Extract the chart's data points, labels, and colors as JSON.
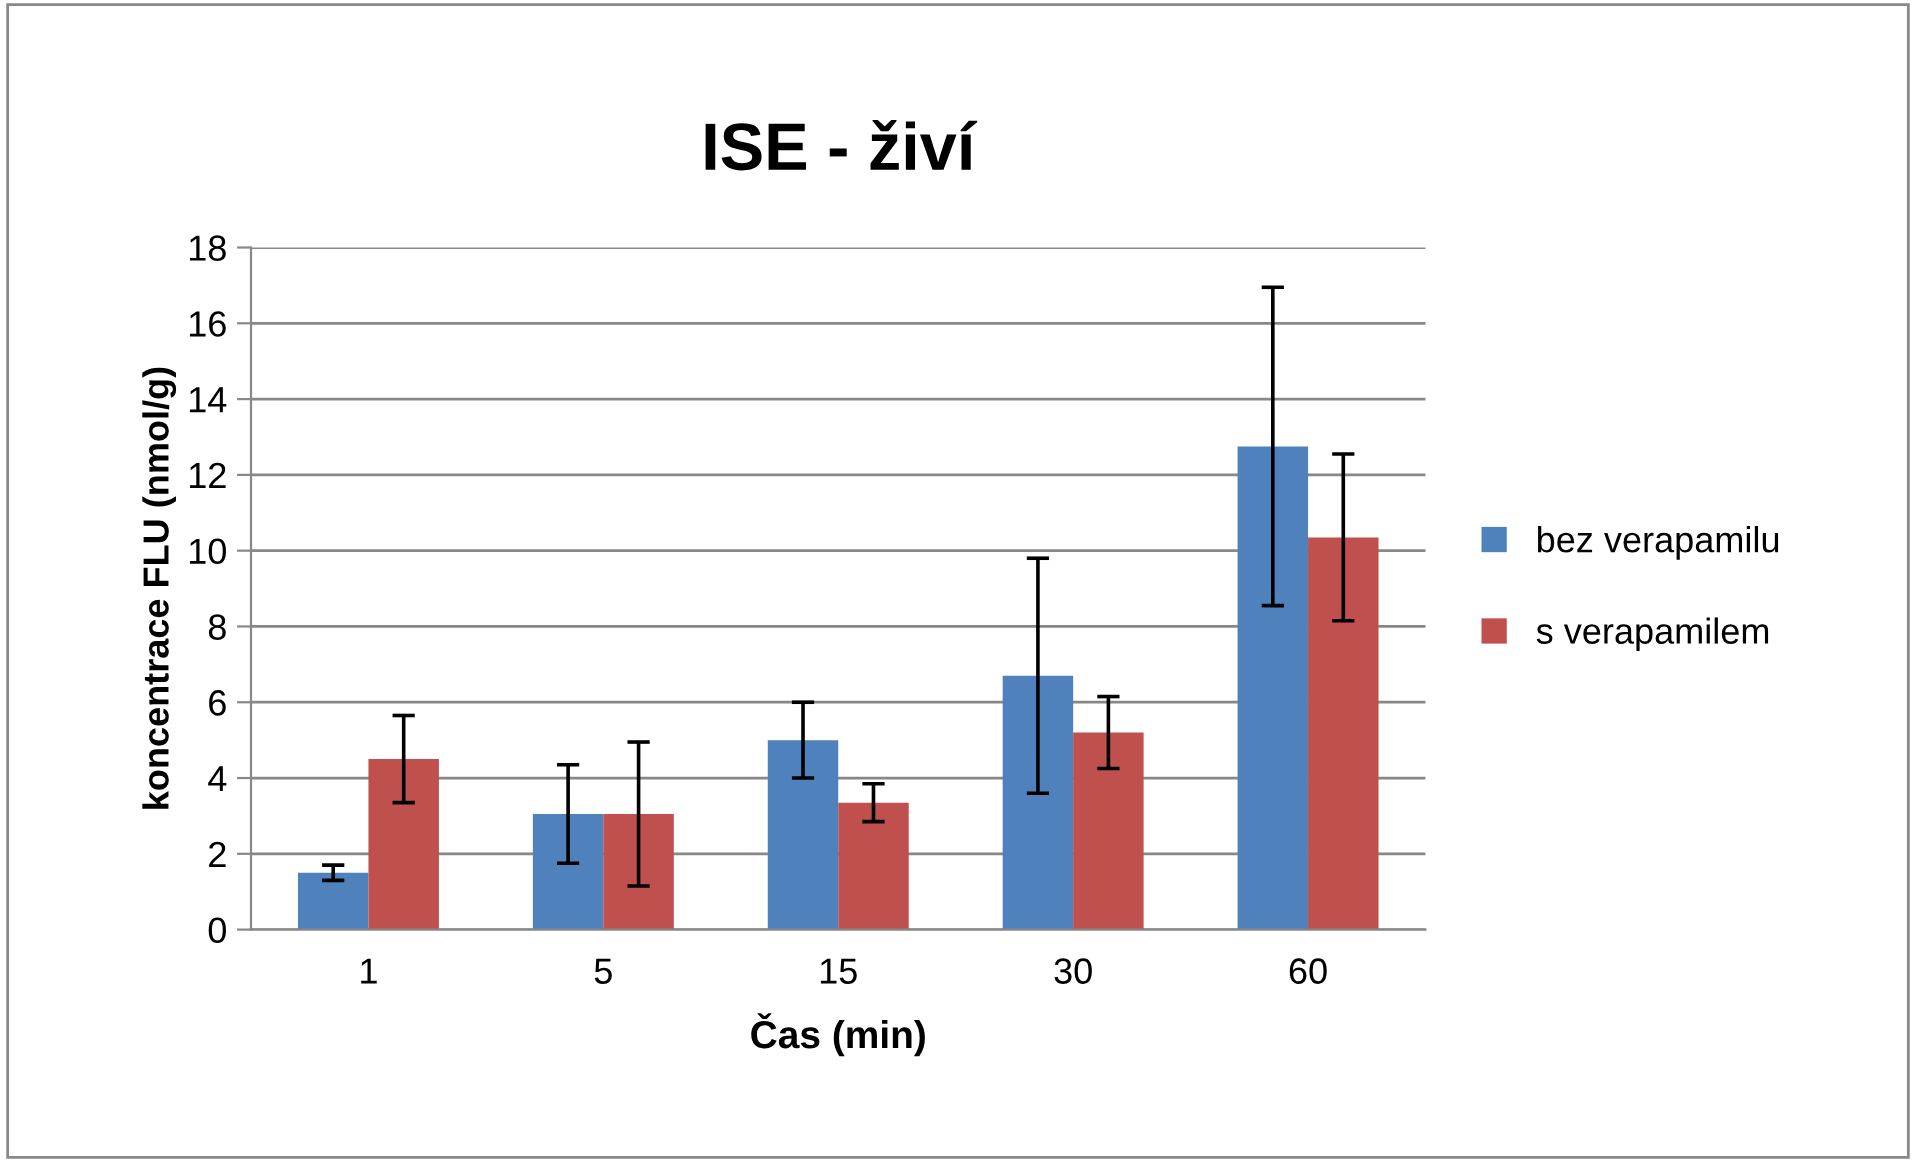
{
  "chart_data": {
    "type": "bar",
    "title": "ISE - živí",
    "xlabel": "Čas (min)",
    "ylabel": "koncentrace FLU (nmol/g)",
    "categories": [
      "1",
      "5",
      "15",
      "30",
      "60"
    ],
    "series": [
      {
        "name": "bez verapamilu",
        "color": "#4f81bd",
        "values": [
          1.5,
          3.05,
          5.0,
          6.7,
          12.75
        ],
        "errors": [
          0.2,
          1.3,
          1.0,
          3.1,
          4.2
        ]
      },
      {
        "name": "s verapamilem",
        "color": "#c0504d",
        "values": [
          4.5,
          3.05,
          3.35,
          5.2,
          10.35
        ],
        "errors": [
          1.15,
          1.9,
          0.5,
          0.95,
          2.2
        ]
      }
    ],
    "ylim": [
      0,
      18
    ],
    "yticks": [
      0,
      2,
      4,
      6,
      8,
      10,
      12,
      14,
      16,
      18
    ],
    "grid": "y",
    "legend": "right"
  }
}
